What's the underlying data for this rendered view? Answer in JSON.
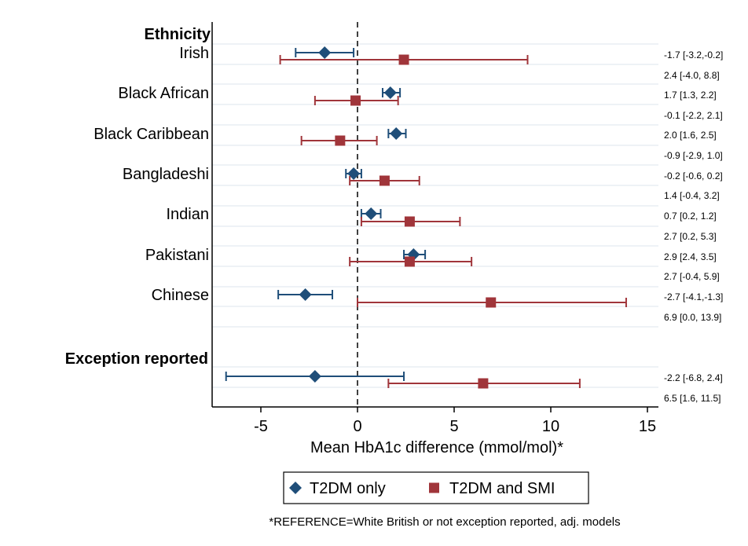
{
  "chart_data": {
    "type": "scatter",
    "subtype": "forest-plot",
    "xlabel": "Mean HbA1c difference (mmol/mol)*",
    "xlim": [
      -7.5,
      15.5
    ],
    "xticks": [
      -5,
      0,
      5,
      10,
      15
    ],
    "xtick_labels": [
      "-5",
      "0",
      "5",
      "10",
      "15"
    ],
    "reference_line_x": 0,
    "grid": "horizontal",
    "section_headings": [
      "Ethnicity",
      "Exception reported"
    ],
    "groups": [
      {
        "label": "Irish",
        "section": "Ethnicity"
      },
      {
        "label": "Black African",
        "section": "Ethnicity"
      },
      {
        "label": "Black Caribbean",
        "section": "Ethnicity"
      },
      {
        "label": "Bangladeshi",
        "section": "Ethnicity"
      },
      {
        "label": "Indian",
        "section": "Ethnicity"
      },
      {
        "label": "Pakistani",
        "section": "Ethnicity"
      },
      {
        "label": "Chinese",
        "section": "Ethnicity"
      },
      {
        "label": "",
        "section": "Exception reported"
      }
    ],
    "series": [
      {
        "name": "T2DM only",
        "marker": "diamond",
        "color": "#1f4e79",
        "estimates": [
          -1.7,
          1.7,
          2.0,
          -0.2,
          0.7,
          2.9,
          -2.7,
          -2.2
        ],
        "lower": [
          -3.2,
          1.3,
          1.6,
          -0.6,
          0.2,
          2.4,
          -4.1,
          -6.8
        ],
        "upper": [
          -0.2,
          2.2,
          2.5,
          0.2,
          1.2,
          3.5,
          -1.3,
          2.4
        ],
        "labels": [
          "-1.7 [-3.2,-0.2]",
          "1.7 [1.3, 2.2]",
          "2.0 [1.6, 2.5]",
          "-0.2 [-0.6, 0.2]",
          "0.7 [0.2, 1.2]",
          "2.9 [2.4, 3.5]",
          "-2.7 [-4.1,-1.3]",
          "-2.2 [-6.8, 2.4]"
        ]
      },
      {
        "name": "T2DM and SMI",
        "marker": "square",
        "color": "#a0353a",
        "estimates": [
          2.4,
          -0.1,
          -0.9,
          1.4,
          2.7,
          2.7,
          6.9,
          6.5
        ],
        "lower": [
          -4.0,
          -2.2,
          -2.9,
          -0.4,
          0.2,
          -0.4,
          0.0,
          1.6
        ],
        "upper": [
          8.8,
          2.1,
          1.0,
          3.2,
          5.3,
          5.9,
          13.9,
          11.5
        ],
        "labels": [
          "2.4 [-4.0, 8.8]",
          "-0.1 [-2.2, 2.1]",
          "-0.9 [-2.9, 1.0]",
          "1.4 [-0.4, 3.2]",
          "2.7 [0.2, 5.3]",
          "2.7 [-0.4, 5.9]",
          "6.9 [0.0, 13.9]",
          "6.5 [1.6, 11.5]"
        ]
      }
    ],
    "legend": {
      "placement": "bottom",
      "entries": [
        "T2DM only",
        "T2DM and SMI"
      ]
    },
    "footnote": "*REFERENCE=White British or not exception reported, adj. models"
  }
}
